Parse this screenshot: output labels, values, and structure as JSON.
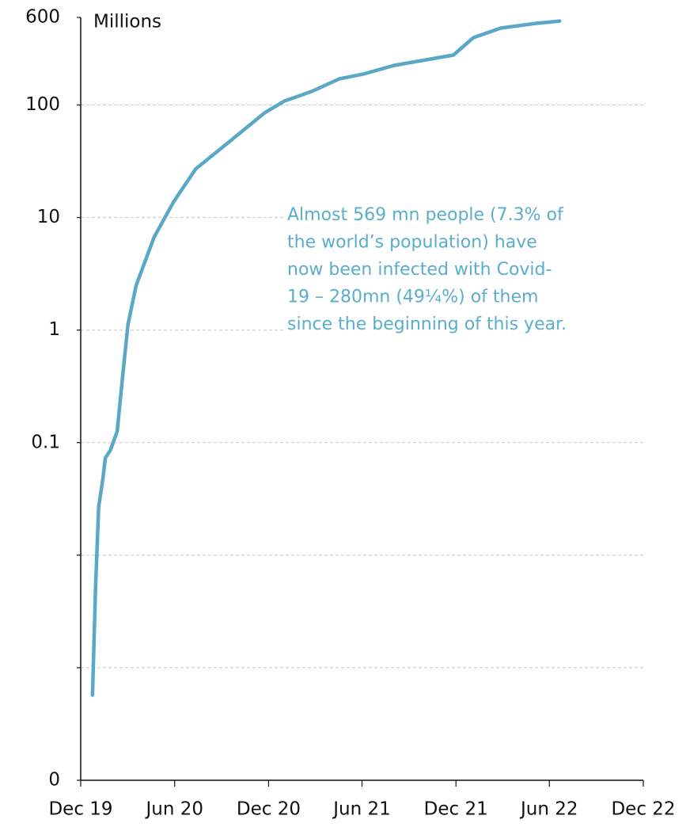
{
  "chart_data": {
    "type": "line",
    "y_unit_label": "Millions",
    "annotation": [
      "Almost 569 mn people (7.3% of",
      "the world’s population) have",
      "now been infected with Covid-",
      "19 – 280mn (49¼%) of them",
      "since the beginning of this year."
    ],
    "log_scale": true,
    "grid": true,
    "xlim": [
      "2019-12-01",
      "2022-12-01"
    ],
    "xticks": [
      {
        "value": "2019-12-01",
        "label": "Dec 19"
      },
      {
        "value": "2020-06-01",
        "label": "Jun 20"
      },
      {
        "value": "2020-12-01",
        "label": "Dec 20"
      },
      {
        "value": "2021-06-01",
        "label": "Jun 21"
      },
      {
        "value": "2021-12-01",
        "label": "Dec 21"
      },
      {
        "value": "2022-06-01",
        "label": "Jun 22"
      },
      {
        "value": "2022-12-01",
        "label": "Dec 22"
      }
    ],
    "ylim": [
      0.0001,
      600
    ],
    "yticks": [
      {
        "value": 0.0001,
        "label": "0"
      },
      {
        "value": 0.001,
        "label": null
      },
      {
        "value": 0.01,
        "label": null
      },
      0.1,
      1,
      10,
      100,
      600
    ],
    "x": [
      "2019-12-24",
      "2019-12-30",
      "2020-01-05",
      "2020-01-13",
      "2020-01-18",
      "2020-01-28",
      "2020-02-10",
      "2020-02-20",
      "2020-03-02",
      "2020-03-18",
      "2020-04-22",
      "2020-05-30",
      "2020-07-12",
      "2020-09-15",
      "2020-11-23",
      "2020-12-31",
      "2021-02-23",
      "2021-04-18",
      "2021-06-03",
      "2021-08-03",
      "2021-10-04",
      "2021-11-26",
      "2022-01-04",
      "2022-02-26",
      "2022-05-06",
      "2022-06-21"
    ],
    "series": [
      {
        "name": "Cumulative Covid-19 cases",
        "color": "#5ba8c6",
        "values": [
          0.00057,
          0.0053,
          0.027,
          0.047,
          0.073,
          0.086,
          0.126,
          0.36,
          1.12,
          2.5,
          6.7,
          13.8,
          27,
          47,
          85,
          108,
          132,
          171,
          188,
          225,
          252,
          278,
          397,
          482,
          531,
          557
        ]
      }
    ]
  }
}
